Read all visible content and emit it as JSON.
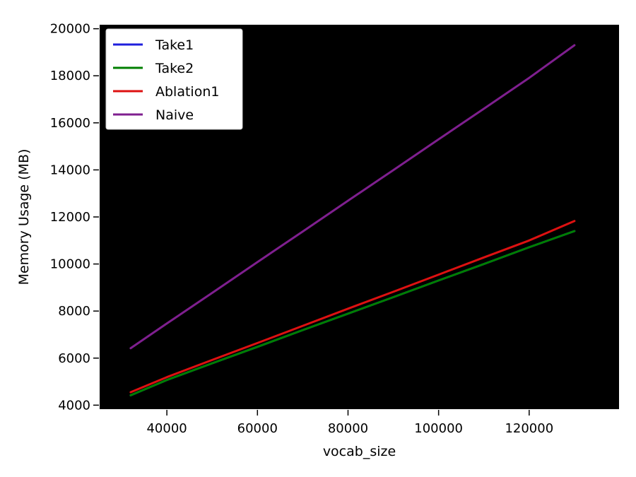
{
  "chart_data": {
    "type": "line",
    "title": "",
    "xlabel": "vocab_size",
    "ylabel": "Memory Usage (MB)",
    "xlim": [
      25000,
      140000
    ],
    "ylim": [
      3800,
      20200
    ],
    "xticks": [
      40000,
      60000,
      80000,
      100000,
      120000
    ],
    "xtick_labels": [
      "40000",
      "60000",
      "80000",
      "100000",
      "120000"
    ],
    "yticks": [
      4000,
      6000,
      8000,
      10000,
      12000,
      14000,
      16000,
      18000,
      20000
    ],
    "ytick_labels": [
      "4000",
      "6000",
      "8000",
      "10000",
      "12000",
      "14000",
      "16000",
      "18000",
      "20000"
    ],
    "grid": false,
    "legend_position": "top-left",
    "x": [
      32000,
      40000,
      50000,
      60000,
      70000,
      80000,
      90000,
      100000,
      110000,
      120000,
      130000
    ],
    "series": [
      {
        "name": "Take1",
        "color": "#1f1fdd",
        "values": [
          4420,
          5070,
          5780,
          6480,
          7190,
          7890,
          8590,
          9300,
          10000,
          10710,
          11400
        ]
      },
      {
        "name": "Take2",
        "color": "#007f00",
        "values": [
          4420,
          5070,
          5780,
          6480,
          7190,
          7890,
          8590,
          9300,
          10000,
          10710,
          11400
        ]
      },
      {
        "name": "Ablation1",
        "color": "#dd1111",
        "values": [
          4550,
          5190,
          5920,
          6640,
          7370,
          8100,
          8820,
          9550,
          10280,
          11000,
          11830
        ]
      },
      {
        "name": "Naive",
        "color": "#7f1f8f",
        "values": [
          6420,
          7470,
          8770,
          10080,
          11380,
          12690,
          13990,
          15300,
          16600,
          17910,
          19300
        ]
      }
    ]
  }
}
